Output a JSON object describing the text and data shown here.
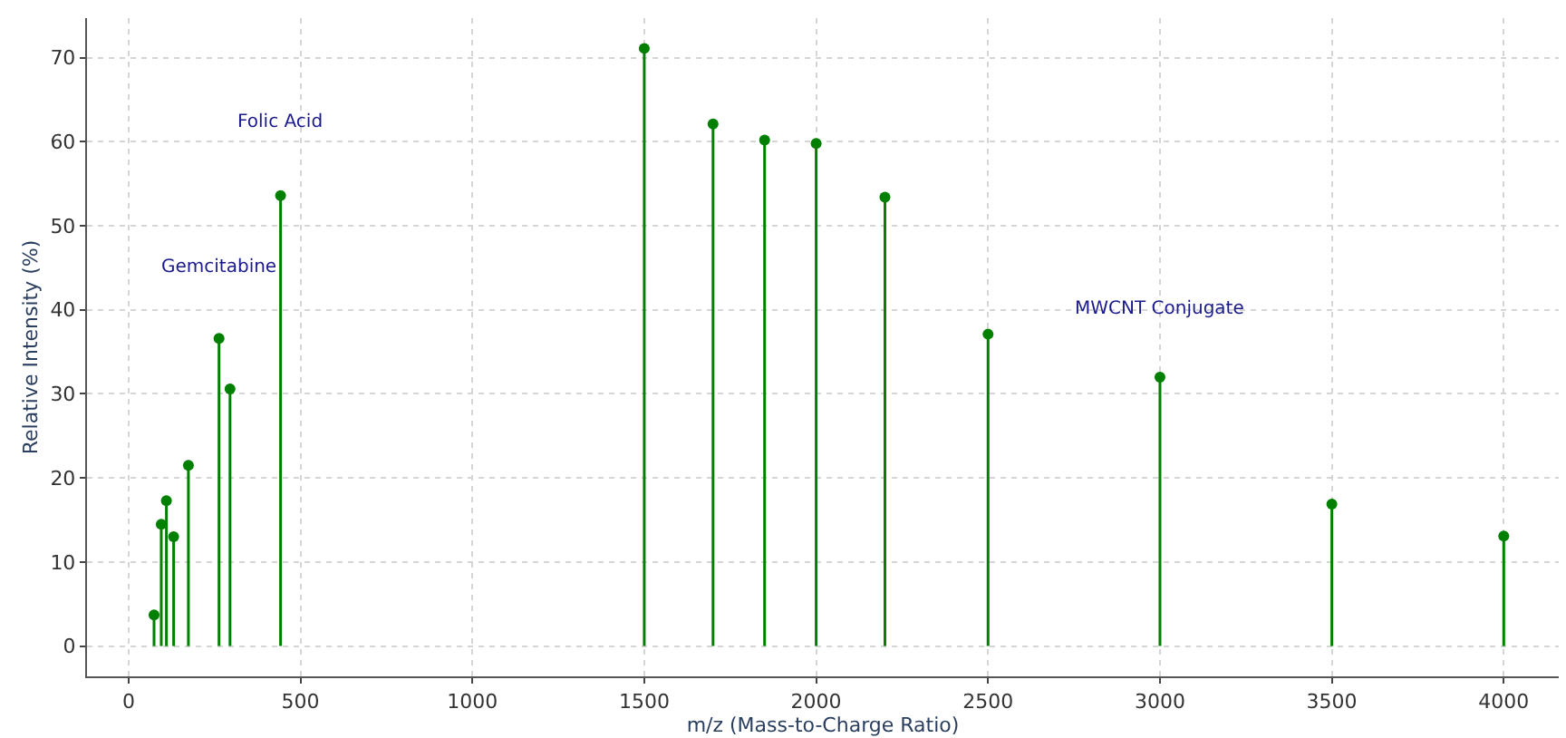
{
  "chart_data": {
    "type": "lollipop",
    "xlabel": "m/z (Mass-to-Charge Ratio)",
    "ylabel": "Relative Intensity (%)",
    "x": [
      74,
      95,
      110,
      131,
      174,
      263,
      295,
      442,
      1500,
      1700,
      1850,
      2000,
      2200,
      2500,
      3000,
      3500,
      4000
    ],
    "series": [
      {
        "color": "#008000",
        "values": [
          3.7,
          14.5,
          17.3,
          13.0,
          21.5,
          36.6,
          30.6,
          53.6,
          71.1,
          62.1,
          60.2,
          59.8,
          53.4,
          37.1,
          32.0,
          16.9,
          13.1
        ]
      }
    ],
    "xlim": [
      -121,
      4160
    ],
    "ylim": [
      -3.6,
      74.7
    ],
    "xticks": [
      0,
      500,
      1000,
      1500,
      2000,
      2500,
      3000,
      3500,
      4000
    ],
    "yticks": [
      0,
      10,
      20,
      30,
      40,
      50,
      60,
      70
    ],
    "annotations": [
      "Folic Acid",
      "Gemcitabine",
      "MWCNT Conjugate"
    ],
    "grid": true,
    "marker": "circle",
    "line_style": "solid"
  }
}
